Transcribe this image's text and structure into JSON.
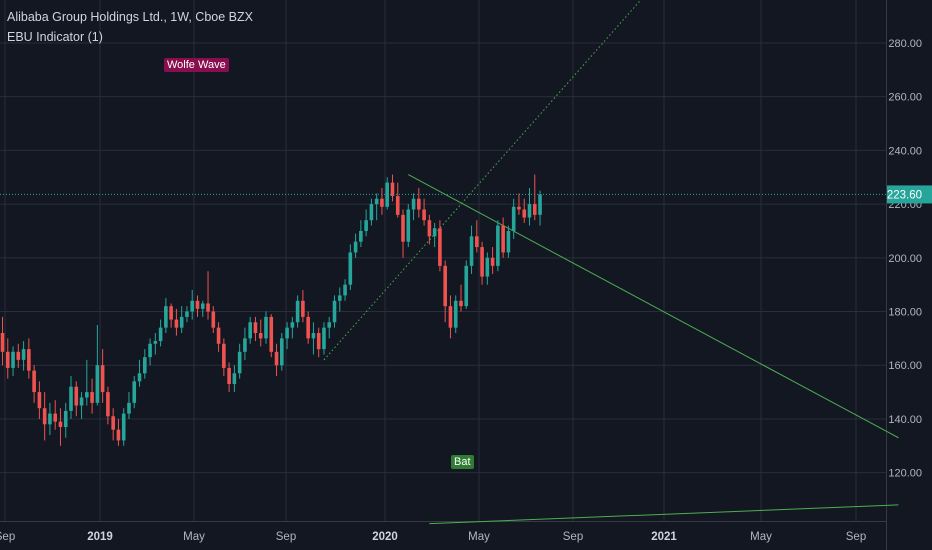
{
  "header": {
    "title": "Alibaba Group Holdings Ltd., 1W, Cboe BZX",
    "indicator": "EBU Indicator (1)"
  },
  "annotations": [
    {
      "label": "Wolfe Wave",
      "color": "#880e4f"
    },
    {
      "label": "Bat",
      "color": "#2e7d32"
    }
  ],
  "price_label": {
    "value": "223.60",
    "level": 223.6
  },
  "colors": {
    "up": "#26a69a",
    "down": "#ef5350",
    "background": "#131722",
    "grid": "#2a2e39",
    "text": "#b2b5be",
    "price_line": "#26a69a",
    "trend_line": "#4caf50"
  },
  "chart_data": {
    "type": "candlestick",
    "title": "Alibaba Group Holdings Ltd., 1W, Cboe BZX",
    "interval": "1W",
    "ylim": [
      102,
      296
    ],
    "y_ticks": [
      120,
      140,
      160,
      180,
      200,
      220,
      240,
      260,
      280
    ],
    "y_tick_labels": [
      "120.00",
      "140.00",
      "160.00",
      "180.00",
      "200.00",
      "220.00",
      "240.00",
      "260.00",
      "280.00"
    ],
    "x_tick_labels": [
      "Sep",
      "2019",
      "May",
      "Sep",
      "2020",
      "May",
      "Sep",
      "2021",
      "May",
      "Sep"
    ],
    "x_tick_bold": [
      false,
      true,
      false,
      false,
      true,
      false,
      false,
      true,
      false,
      false
    ],
    "last_price": 223.6,
    "candles": [
      {
        "o": 172,
        "h": 178,
        "l": 160,
        "c": 165
      },
      {
        "o": 165,
        "h": 170,
        "l": 155,
        "c": 159
      },
      {
        "o": 159,
        "h": 167,
        "l": 156,
        "c": 165
      },
      {
        "o": 165,
        "h": 168,
        "l": 159,
        "c": 162
      },
      {
        "o": 162,
        "h": 169,
        "l": 158,
        "c": 166
      },
      {
        "o": 166,
        "h": 170,
        "l": 155,
        "c": 158
      },
      {
        "o": 158,
        "h": 160,
        "l": 146,
        "c": 150
      },
      {
        "o": 150,
        "h": 154,
        "l": 140,
        "c": 144
      },
      {
        "o": 144,
        "h": 150,
        "l": 132,
        "c": 138
      },
      {
        "o": 138,
        "h": 146,
        "l": 134,
        "c": 142
      },
      {
        "o": 142,
        "h": 147,
        "l": 136,
        "c": 139
      },
      {
        "o": 139,
        "h": 144,
        "l": 130,
        "c": 137
      },
      {
        "o": 137,
        "h": 146,
        "l": 133,
        "c": 143
      },
      {
        "o": 143,
        "h": 156,
        "l": 140,
        "c": 152
      },
      {
        "o": 152,
        "h": 154,
        "l": 141,
        "c": 145
      },
      {
        "o": 145,
        "h": 150,
        "l": 140,
        "c": 148
      },
      {
        "o": 148,
        "h": 162,
        "l": 145,
        "c": 150
      },
      {
        "o": 150,
        "h": 155,
        "l": 142,
        "c": 146
      },
      {
        "o": 146,
        "h": 175,
        "l": 145,
        "c": 160
      },
      {
        "o": 160,
        "h": 166,
        "l": 146,
        "c": 150
      },
      {
        "o": 150,
        "h": 152,
        "l": 138,
        "c": 141
      },
      {
        "o": 141,
        "h": 144,
        "l": 132,
        "c": 136
      },
      {
        "o": 136,
        "h": 140,
        "l": 130,
        "c": 132
      },
      {
        "o": 132,
        "h": 144,
        "l": 130,
        "c": 142
      },
      {
        "o": 142,
        "h": 150,
        "l": 140,
        "c": 146
      },
      {
        "o": 146,
        "h": 156,
        "l": 144,
        "c": 154
      },
      {
        "o": 154,
        "h": 162,
        "l": 152,
        "c": 157
      },
      {
        "o": 157,
        "h": 166,
        "l": 155,
        "c": 163
      },
      {
        "o": 163,
        "h": 170,
        "l": 160,
        "c": 168
      },
      {
        "o": 168,
        "h": 172,
        "l": 164,
        "c": 169
      },
      {
        "o": 169,
        "h": 177,
        "l": 167,
        "c": 174
      },
      {
        "o": 174,
        "h": 185,
        "l": 172,
        "c": 182
      },
      {
        "o": 182,
        "h": 183,
        "l": 174,
        "c": 177
      },
      {
        "o": 177,
        "h": 181,
        "l": 171,
        "c": 174
      },
      {
        "o": 174,
        "h": 182,
        "l": 172,
        "c": 178
      },
      {
        "o": 178,
        "h": 182,
        "l": 176,
        "c": 180
      },
      {
        "o": 180,
        "h": 188,
        "l": 177,
        "c": 184
      },
      {
        "o": 184,
        "h": 186,
        "l": 178,
        "c": 181
      },
      {
        "o": 181,
        "h": 184,
        "l": 178,
        "c": 183
      },
      {
        "o": 183,
        "h": 195,
        "l": 177,
        "c": 180
      },
      {
        "o": 180,
        "h": 182,
        "l": 172,
        "c": 174
      },
      {
        "o": 174,
        "h": 176,
        "l": 165,
        "c": 168
      },
      {
        "o": 168,
        "h": 170,
        "l": 156,
        "c": 159
      },
      {
        "o": 159,
        "h": 161,
        "l": 150,
        "c": 153
      },
      {
        "o": 153,
        "h": 160,
        "l": 150,
        "c": 157
      },
      {
        "o": 157,
        "h": 168,
        "l": 155,
        "c": 165
      },
      {
        "o": 165,
        "h": 174,
        "l": 162,
        "c": 170
      },
      {
        "o": 170,
        "h": 178,
        "l": 168,
        "c": 176
      },
      {
        "o": 176,
        "h": 178,
        "l": 169,
        "c": 172
      },
      {
        "o": 172,
        "h": 177,
        "l": 167,
        "c": 170
      },
      {
        "o": 170,
        "h": 180,
        "l": 168,
        "c": 178
      },
      {
        "o": 178,
        "h": 179,
        "l": 163,
        "c": 165
      },
      {
        "o": 165,
        "h": 168,
        "l": 156,
        "c": 160
      },
      {
        "o": 160,
        "h": 172,
        "l": 158,
        "c": 170
      },
      {
        "o": 170,
        "h": 176,
        "l": 166,
        "c": 174
      },
      {
        "o": 174,
        "h": 178,
        "l": 170,
        "c": 176
      },
      {
        "o": 176,
        "h": 186,
        "l": 174,
        "c": 184
      },
      {
        "o": 184,
        "h": 188,
        "l": 176,
        "c": 178
      },
      {
        "o": 178,
        "h": 180,
        "l": 168,
        "c": 170
      },
      {
        "o": 170,
        "h": 176,
        "l": 164,
        "c": 172
      },
      {
        "o": 172,
        "h": 174,
        "l": 163,
        "c": 166
      },
      {
        "o": 166,
        "h": 176,
        "l": 164,
        "c": 174
      },
      {
        "o": 174,
        "h": 178,
        "l": 170,
        "c": 176
      },
      {
        "o": 176,
        "h": 186,
        "l": 174,
        "c": 184
      },
      {
        "o": 184,
        "h": 189,
        "l": 180,
        "c": 186
      },
      {
        "o": 186,
        "h": 192,
        "l": 184,
        "c": 190
      },
      {
        "o": 190,
        "h": 205,
        "l": 188,
        "c": 202
      },
      {
        "o": 202,
        "h": 209,
        "l": 200,
        "c": 206
      },
      {
        "o": 206,
        "h": 214,
        "l": 204,
        "c": 210
      },
      {
        "o": 210,
        "h": 218,
        "l": 208,
        "c": 214
      },
      {
        "o": 214,
        "h": 222,
        "l": 212,
        "c": 220
      },
      {
        "o": 220,
        "h": 224,
        "l": 214,
        "c": 222
      },
      {
        "o": 222,
        "h": 226,
        "l": 216,
        "c": 219
      },
      {
        "o": 219,
        "h": 230,
        "l": 218,
        "c": 228
      },
      {
        "o": 228,
        "h": 231,
        "l": 221,
        "c": 223
      },
      {
        "o": 223,
        "h": 228,
        "l": 215,
        "c": 216
      },
      {
        "o": 216,
        "h": 218,
        "l": 200,
        "c": 206
      },
      {
        "o": 206,
        "h": 220,
        "l": 204,
        "c": 218
      },
      {
        "o": 218,
        "h": 224,
        "l": 214,
        "c": 222
      },
      {
        "o": 222,
        "h": 226,
        "l": 215,
        "c": 218
      },
      {
        "o": 218,
        "h": 222,
        "l": 212,
        "c": 214
      },
      {
        "o": 214,
        "h": 216,
        "l": 205,
        "c": 208
      },
      {
        "o": 208,
        "h": 213,
        "l": 204,
        "c": 211
      },
      {
        "o": 211,
        "h": 214,
        "l": 195,
        "c": 197
      },
      {
        "o": 197,
        "h": 199,
        "l": 176,
        "c": 182
      },
      {
        "o": 182,
        "h": 186,
        "l": 170,
        "c": 174
      },
      {
        "o": 174,
        "h": 186,
        "l": 172,
        "c": 184
      },
      {
        "o": 184,
        "h": 190,
        "l": 180,
        "c": 182
      },
      {
        "o": 182,
        "h": 199,
        "l": 181,
        "c": 197
      },
      {
        "o": 197,
        "h": 212,
        "l": 194,
        "c": 208
      },
      {
        "o": 208,
        "h": 214,
        "l": 202,
        "c": 204
      },
      {
        "o": 204,
        "h": 206,
        "l": 190,
        "c": 193
      },
      {
        "o": 193,
        "h": 202,
        "l": 190,
        "c": 200
      },
      {
        "o": 200,
        "h": 204,
        "l": 194,
        "c": 197
      },
      {
        "o": 197,
        "h": 214,
        "l": 195,
        "c": 212
      },
      {
        "o": 212,
        "h": 215,
        "l": 200,
        "c": 202
      },
      {
        "o": 202,
        "h": 212,
        "l": 200,
        "c": 210
      },
      {
        "o": 210,
        "h": 222,
        "l": 207,
        "c": 219
      },
      {
        "o": 219,
        "h": 224,
        "l": 216,
        "c": 218
      },
      {
        "o": 218,
        "h": 222,
        "l": 213,
        "c": 215
      },
      {
        "o": 215,
        "h": 226,
        "l": 212,
        "c": 220
      },
      {
        "o": 220,
        "h": 231,
        "l": 214,
        "c": 216
      },
      {
        "o": 216,
        "h": 225,
        "l": 212,
        "c": 223.6
      }
    ],
    "trend_lines": [
      {
        "style": "solid",
        "points": [
          [
            77,
            231
          ],
          [
            170,
            133
          ]
        ]
      },
      {
        "style": "dotted",
        "points": [
          [
            61,
            162
          ],
          [
            122,
            298
          ]
        ]
      },
      {
        "style": "solid",
        "points": [
          [
            81,
            101
          ],
          [
            170,
            108
          ]
        ]
      }
    ]
  }
}
